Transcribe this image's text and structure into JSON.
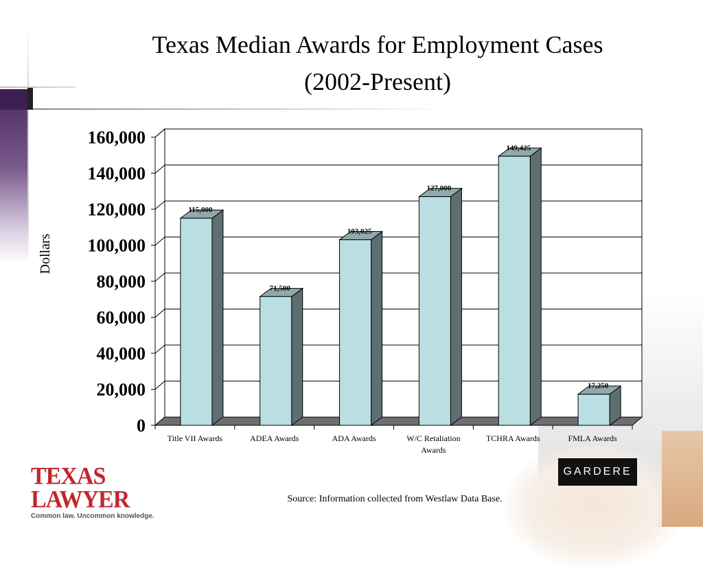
{
  "title_line1": "Texas Median Awards for Employment Cases",
  "title_line2": "(2002-Present)",
  "source": "Source:  Information collected from Westlaw Data Base.",
  "logos": {
    "texas_lawyer": "TEXAS LAWYER",
    "texas_lawyer_tagline": "Common law. Uncommon knowledge.",
    "gardere": "GARDERE"
  },
  "colors": {
    "bar_front": "#b9dfe3",
    "bar_side": "#5e6f72",
    "bar_top": "#8fa9ac",
    "floor": "#6e6e6e",
    "brand_red": "#c0272d"
  },
  "chart_data": {
    "type": "bar",
    "ylabel": "Dollars",
    "ylim": [
      0,
      160000
    ],
    "yticks": [
      "0",
      "20,000",
      "40,000",
      "60,000",
      "80,000",
      "100,000",
      "120,000",
      "140,000",
      "160,000"
    ],
    "categories": [
      [
        "Title VII Awards"
      ],
      [
        "ADEA Awards"
      ],
      [
        "ADA Awards"
      ],
      [
        "W/C Retaliation",
        "Awards"
      ],
      [
        "TCHRA Awards"
      ],
      [
        "FMLA Awards"
      ]
    ],
    "values": [
      115000,
      71500,
      103025,
      127000,
      149425,
      17250
    ],
    "data_labels": [
      "115,000",
      "71,500",
      "103,025",
      "127,000",
      "149,425",
      "17,250"
    ],
    "grid": true,
    "three_d": true
  }
}
